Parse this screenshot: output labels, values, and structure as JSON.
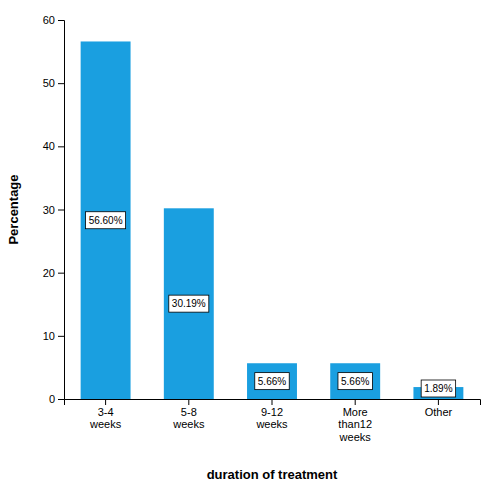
{
  "chart_data": {
    "type": "bar",
    "categories": [
      "3-4\nweeks",
      "5-8\nweeks",
      "9-12\nweeks",
      "More\nthan12\nweeks",
      "Other"
    ],
    "values": [
      56.6,
      30.19,
      5.66,
      5.66,
      1.89
    ],
    "value_labels": [
      "56.60%",
      "30.19%",
      "5.66%",
      "5.66%",
      "1.89%"
    ],
    "color": "#1A9FE0",
    "xlabel": "duration of treatment",
    "ylabel": "Percentage",
    "ylim": [
      0,
      60
    ],
    "yticks": [
      0,
      10,
      20,
      30,
      40,
      50,
      60
    ],
    "grid": false,
    "data_labels": true
  }
}
